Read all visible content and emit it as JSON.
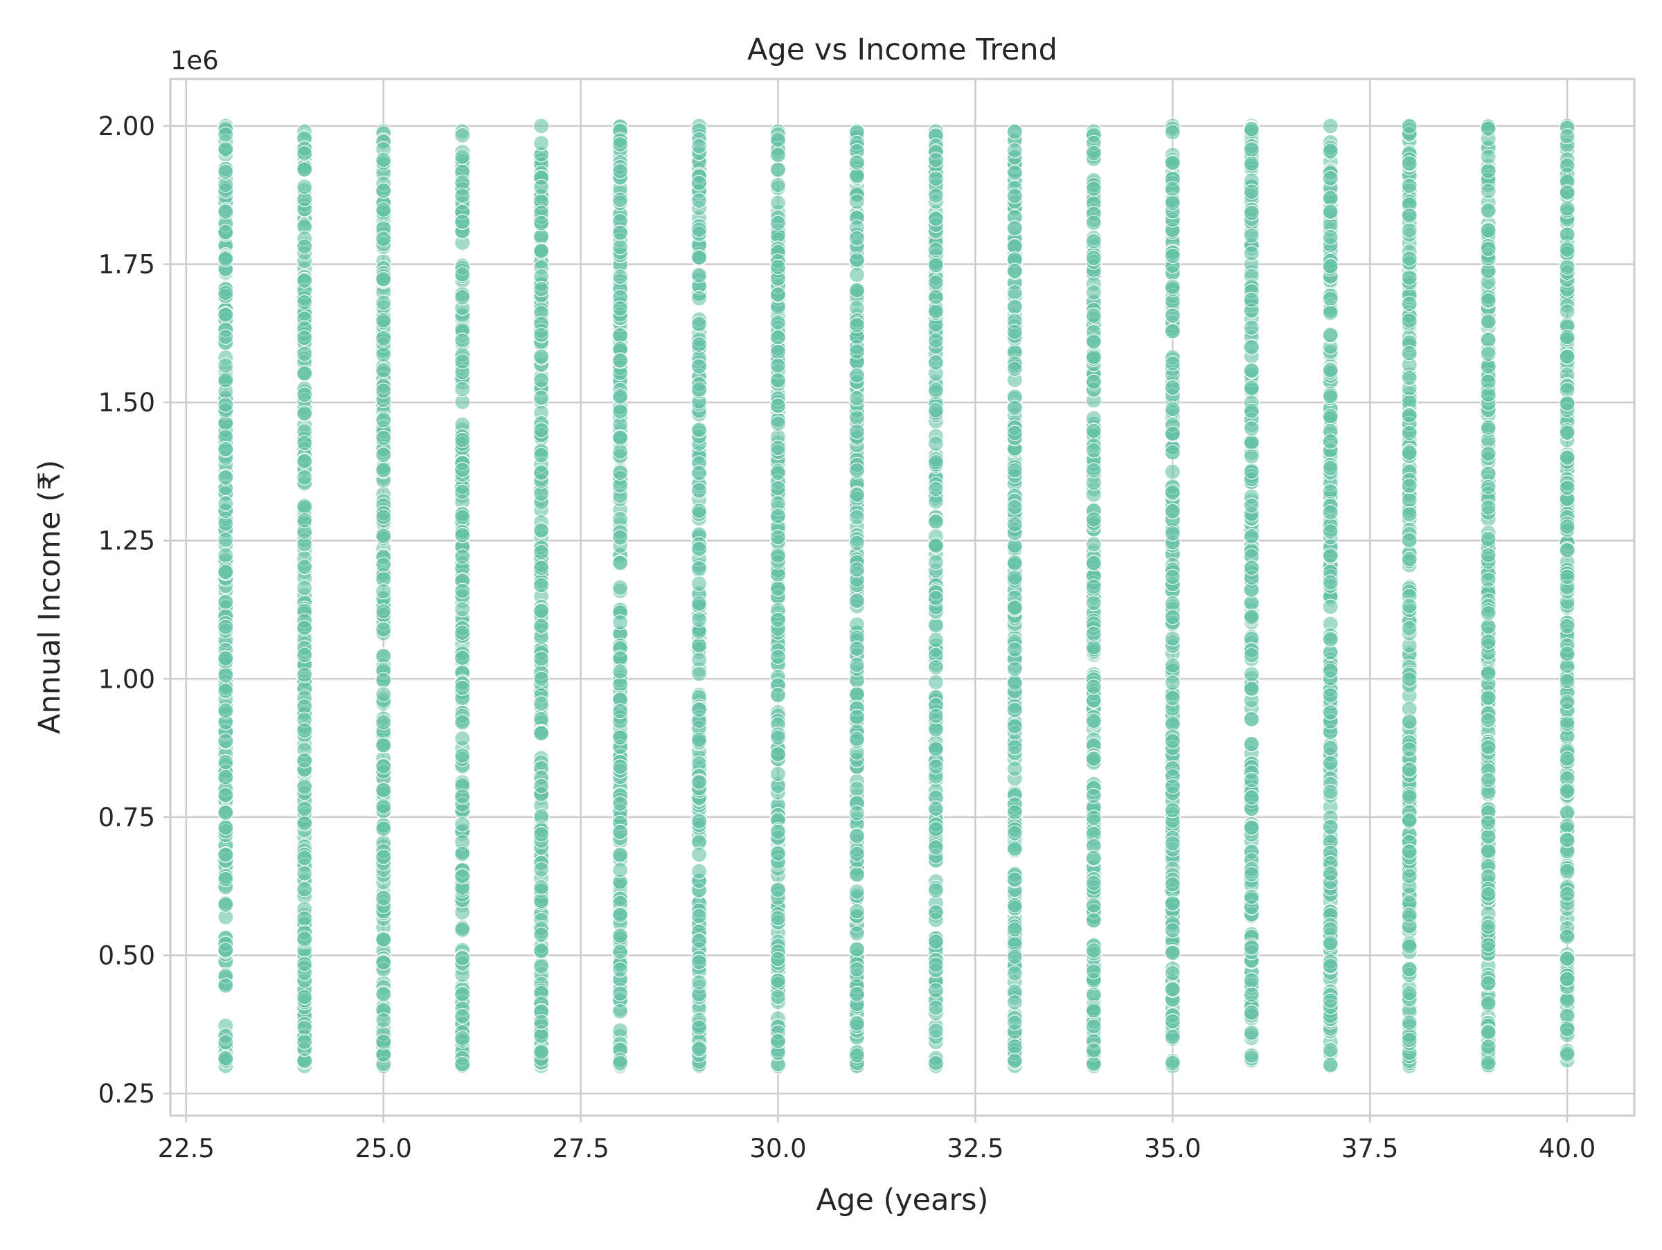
{
  "chart_data": {
    "type": "scatter",
    "title": "Age vs Income Trend",
    "xlabel": "Age (years)",
    "ylabel": "Annual Income (₹)",
    "y_offset_label": "1e6",
    "xlim": [
      22.3,
      40.85
    ],
    "ylim": [
      0.21,
      2.085
    ],
    "x_ticks": [
      22.5,
      25.0,
      27.5,
      30.0,
      32.5,
      35.0,
      37.5,
      40.0
    ],
    "x_tick_labels": [
      "22.5",
      "25.0",
      "27.5",
      "30.0",
      "32.5",
      "35.0",
      "37.5",
      "40.0"
    ],
    "y_ticks": [
      0.25,
      0.5,
      0.75,
      1.0,
      1.25,
      1.5,
      1.75,
      2.0
    ],
    "y_tick_labels": [
      "0.25",
      "0.50",
      "0.75",
      "1.00",
      "1.25",
      "1.50",
      "1.75",
      "2.00"
    ],
    "y_unit_multiplier": 1000000,
    "grid": true,
    "legend": "none",
    "point_color": "#66c2a5",
    "point_opacity": 0.6,
    "series": [
      {
        "values_description_note": "",
        "ages": [
          23,
          24,
          25,
          26,
          27,
          28,
          29,
          30,
          31,
          32,
          33,
          34,
          35,
          36,
          37,
          38,
          39,
          40
        ],
        "income_range_per_age": [
          [
            0.3,
            2.0
          ],
          [
            0.3,
            1.99
          ],
          [
            0.3,
            1.99
          ],
          [
            0.3,
            1.99
          ],
          [
            0.3,
            2.0
          ],
          [
            0.3,
            2.0
          ],
          [
            0.3,
            2.0
          ],
          [
            0.3,
            1.99
          ],
          [
            0.3,
            1.99
          ],
          [
            0.3,
            1.99
          ],
          [
            0.3,
            1.99
          ],
          [
            0.3,
            1.99
          ],
          [
            0.3,
            2.0
          ],
          [
            0.31,
            2.0
          ],
          [
            0.3,
            2.0
          ],
          [
            0.3,
            2.0
          ],
          [
            0.3,
            2.0
          ],
          [
            0.31,
            2.0
          ]
        ]
      }
    ]
  }
}
